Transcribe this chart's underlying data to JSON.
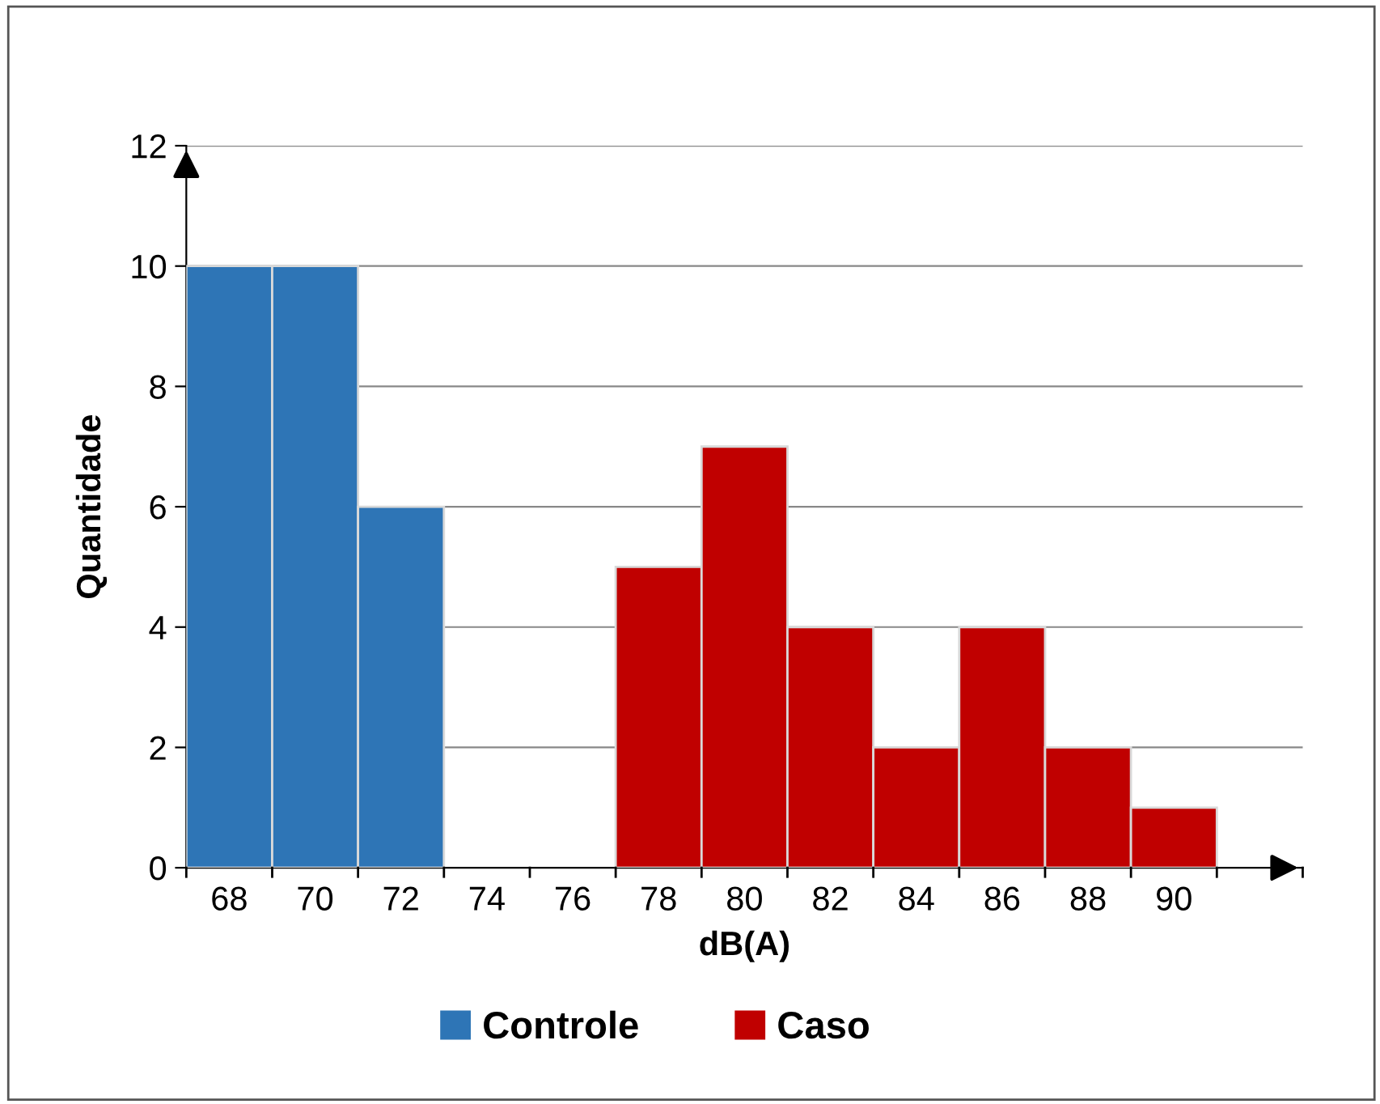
{
  "chart_data": {
    "type": "bar",
    "xlabel": "dB(A)",
    "ylabel": "Quantidade",
    "categories": [
      "68",
      "70",
      "72",
      "74",
      "76",
      "78",
      "80",
      "82",
      "84",
      "86",
      "88",
      "90",
      null
    ],
    "series": [
      {
        "name": "Controle",
        "color": "#2e75b6",
        "values": [
          10,
          10,
          6,
          null,
          null,
          null,
          null,
          null,
          null,
          null,
          null,
          null,
          null
        ]
      },
      {
        "name": "Caso",
        "color": "#c00000",
        "values": [
          null,
          null,
          null,
          null,
          null,
          5,
          7,
          4,
          2,
          4,
          2,
          1,
          null
        ]
      }
    ],
    "ylim": [
      0,
      12
    ],
    "yticks": [
      0,
      2,
      4,
      6,
      8,
      10,
      12
    ],
    "grid": "y",
    "legend": "bottom"
  }
}
